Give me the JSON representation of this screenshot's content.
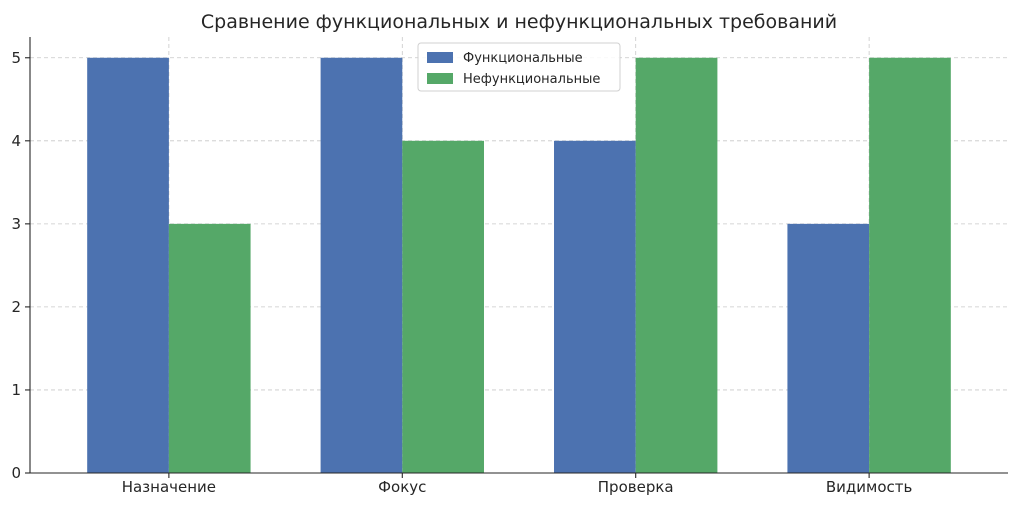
{
  "chart_data": {
    "type": "bar",
    "title": "Сравнение функциональных и нефункциональных требований",
    "xlabel": "",
    "ylabel": "",
    "categories": [
      "Назначение",
      "Фокус",
      "Проверка",
      "Видимость"
    ],
    "series": [
      {
        "name": "Функциональные",
        "values": [
          5,
          5,
          4,
          3
        ],
        "color": "#4c72b0"
      },
      {
        "name": "Нефункциональные",
        "values": [
          3,
          4,
          5,
          5
        ],
        "color": "#55a868"
      }
    ],
    "ylim": [
      0,
      5.25
    ],
    "yticks": [
      0,
      1,
      2,
      3,
      4,
      5
    ],
    "grid": true,
    "legend": "top-center"
  }
}
